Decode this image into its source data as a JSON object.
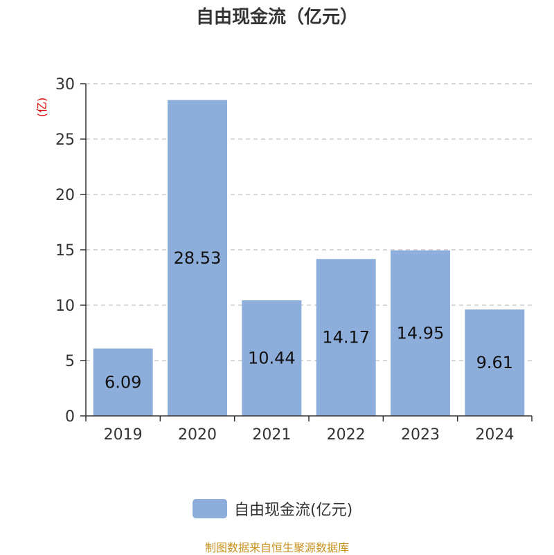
{
  "title": "自由现金流（亿元）",
  "unit_label": "(亿)",
  "legend_label": "自由现金流(亿元)",
  "source_note": "制图数据来自恒生聚源数据库",
  "colors": {
    "bar": "#8dadda",
    "axis": "#333333",
    "grid": "#cccccc",
    "unit": "#e00000",
    "label": "#111111",
    "source": "#c8921e"
  },
  "chart_data": {
    "type": "bar",
    "title": "自由现金流（亿元）",
    "categories": [
      "2019",
      "2020",
      "2021",
      "2022",
      "2023",
      "2024"
    ],
    "series": [
      {
        "name": "自由现金流(亿元)",
        "values": [
          6.09,
          28.53,
          10.44,
          14.17,
          14.95,
          9.61
        ]
      }
    ],
    "data_labels": [
      "6.09",
      "28.53",
      "10.44",
      "14.17",
      "14.95",
      "9.61"
    ],
    "ylim": [
      0,
      30
    ],
    "yticks": [
      0,
      5,
      10,
      15,
      20,
      25,
      30
    ],
    "ylabel": "(亿)",
    "grid": "horizontal-dashed",
    "legend": "bottom-center"
  }
}
